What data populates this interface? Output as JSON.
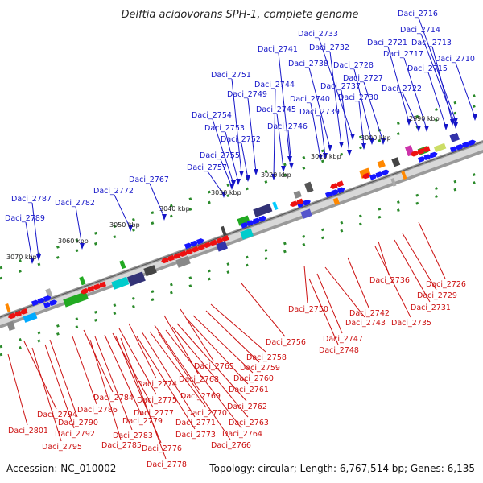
{
  "title": "Delftia acidovorans SPH-1, complete genome",
  "footer": {
    "accession": "Accession: NC_010002",
    "summary": "Topology: circular; Length: 6,767,514 bp; Genes: 6,135"
  },
  "ticks": [
    "2990 kbp",
    "3000 kbp",
    "3010 kbp",
    "3020 kbp",
    "3030 kbp",
    "3040 kbp",
    "3050 kbp",
    "3060 kbp",
    "3070 kbp"
  ],
  "colors": {
    "forward": "#1515c8",
    "reverse": "#cc1111",
    "backbone": "#9a9a9a",
    "dots": "#2a8a2a"
  },
  "forward_genes": [
    "Daci_2716",
    "Daci_2714",
    "Daci_2733",
    "Daci_2721",
    "Daci_2713",
    "Daci_2741",
    "Daci_2732",
    "Daci_2717",
    "Daci_2710",
    "Daci_2738",
    "Daci_2728",
    "Daci_2715",
    "Daci_2751",
    "Daci_2727",
    "Daci_2744",
    "Daci_2737",
    "Daci_2722",
    "Daci_2749",
    "Daci_2740",
    "Daci_2730",
    "Daci_2745",
    "Daci_2739",
    "Daci_2754",
    "Daci_2746",
    "Daci_2753",
    "Daci_2752",
    "Daci_2755",
    "Daci_2757",
    "Daci_2767",
    "Daci_2772",
    "Daci_2787",
    "Daci_2782",
    "Daci_2789"
  ],
  "reverse_genes": [
    "Daci_2736",
    "Daci_2726",
    "Daci_2729",
    "Daci_2731",
    "Daci_2750",
    "Daci_2742",
    "Daci_2743",
    "Daci_2735",
    "Daci_2747",
    "Daci_2756",
    "Daci_2748",
    "Daci_2758",
    "Daci_2765",
    "Daci_2759",
    "Daci_2768",
    "Daci_2760",
    "Daci_2774",
    "Daci_2761",
    "Daci_2769",
    "Daci_2775",
    "Daci_2784",
    "Daci_2770",
    "Daci_2762",
    "Daci_2786",
    "Daci_2777",
    "Daci_2794",
    "Daci_2779",
    "Daci_2771",
    "Daci_2763",
    "Daci_2790",
    "Daci_2783",
    "Daci_2773",
    "Daci_2764",
    "Daci_2801",
    "Daci_2792",
    "Daci_2785",
    "Daci_2776",
    "Daci_2766",
    "Daci_2795",
    "Daci_2778"
  ]
}
